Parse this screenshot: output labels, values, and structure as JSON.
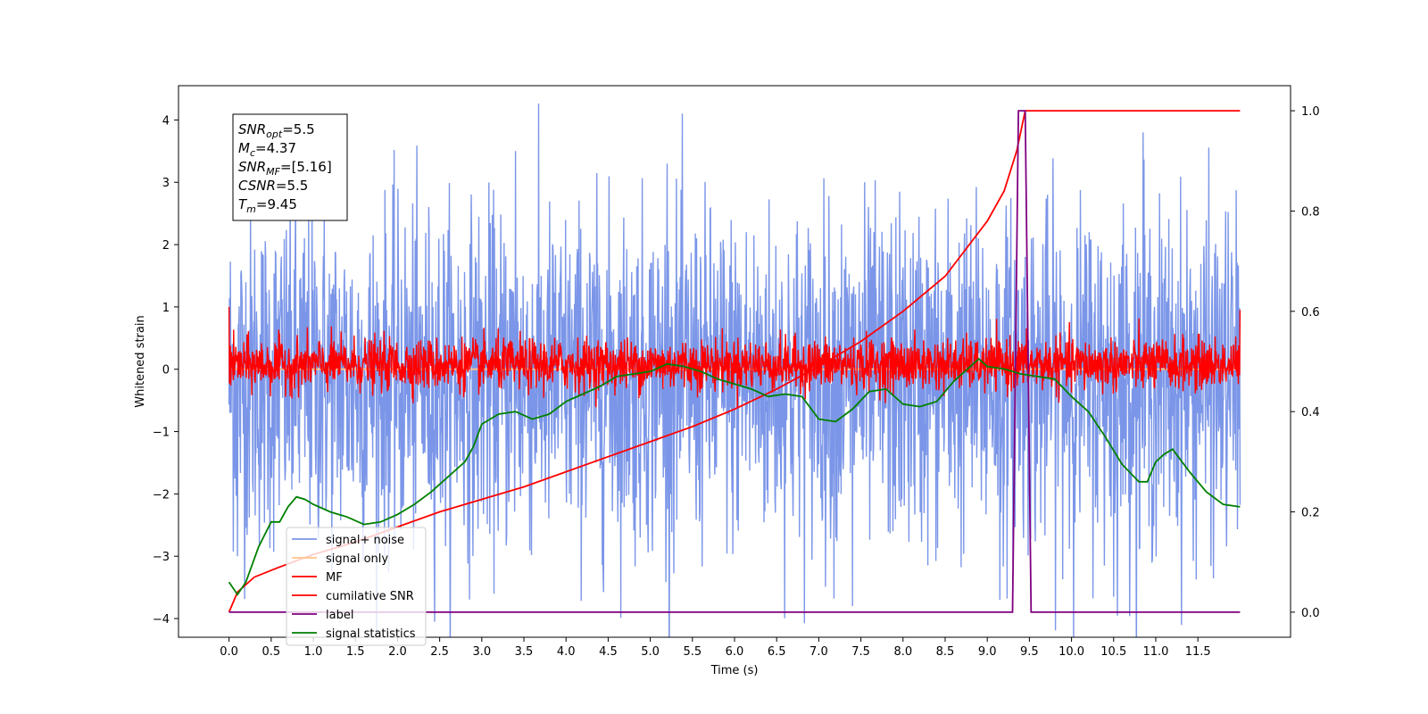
{
  "chart_data": {
    "type": "line",
    "title": "",
    "xlabel": "Time (s)",
    "ylabel": "Whitened strain",
    "ylabel_right": "",
    "xlim": [
      -0.6,
      12.6
    ],
    "ylim": [
      -4.3,
      4.55
    ],
    "ylim_right": [
      -0.05,
      1.05
    ],
    "x_ticks": [
      "0.0",
      "0.5",
      "1.0",
      "1.5",
      "2.0",
      "2.5",
      "3.0",
      "3.5",
      "4.0",
      "4.5",
      "5.0",
      "5.5",
      "6.0",
      "6.5",
      "7.0",
      "7.5",
      "8.0",
      "8.5",
      "9.0",
      "9.5",
      "10.0",
      "10.5",
      "11.0",
      "11.5"
    ],
    "x_tick_values": [
      0,
      0.5,
      1,
      1.5,
      2,
      2.5,
      3,
      3.5,
      4,
      4.5,
      5,
      5.5,
      6,
      6.5,
      7,
      7.5,
      8,
      8.5,
      9,
      9.5,
      10,
      10.5,
      11,
      11.5
    ],
    "y_ticks": [
      "−4",
      "−3",
      "−2",
      "−1",
      "0",
      "1",
      "2",
      "3",
      "4"
    ],
    "y_tick_values": [
      -4,
      -3,
      -2,
      -1,
      0,
      1,
      2,
      3,
      4
    ],
    "y_ticks_right": [
      "0.0",
      "0.2",
      "0.4",
      "0.6",
      "0.8",
      "1.0"
    ],
    "y_tick_values_right": [
      0,
      0.2,
      0.4,
      0.6,
      0.8,
      1.0
    ],
    "grid": false,
    "legend_position": "lower-left",
    "series": [
      {
        "name": "signal+ noise",
        "color": "#7b96e8",
        "axis": "left",
        "style": "noise",
        "x_range": [
          0,
          12.0
        ],
        "approx_lower": -2.6,
        "approx_upper": 2.3,
        "notable_minima": [
          [
            0.1,
            -3.0
          ],
          [
            7.4,
            -3.8
          ],
          [
            9.15,
            -3.7
          ],
          [
            10.5,
            -3.65
          ]
        ],
        "notable_maxima": [
          [
            3.4,
            3.5
          ],
          [
            10.85,
            3.8
          ],
          [
            5.2,
            3.3
          ]
        ]
      },
      {
        "name": "signal only",
        "color": "#ffc48a",
        "axis": "left",
        "style": "line",
        "x": [
          0,
          12.0
        ],
        "y": [
          0,
          0
        ]
      },
      {
        "name": "MF",
        "color": "#ff0000",
        "axis": "left",
        "style": "noise",
        "x_range": [
          0,
          12.0
        ],
        "approx_lower": -0.3,
        "approx_upper": 0.45,
        "endpoints": [
          [
            0,
            1.0
          ],
          [
            12.0,
            0.95
          ]
        ]
      },
      {
        "name": "cumilative SNR",
        "color": "#ff0000",
        "axis": "right",
        "style": "line",
        "x": [
          0,
          0.1,
          0.3,
          0.6,
          1,
          1.5,
          2,
          2.5,
          3,
          3.5,
          4,
          4.5,
          5,
          5.5,
          6,
          6.5,
          7,
          7.5,
          8,
          8.5,
          9,
          9.2,
          9.35,
          9.45,
          10,
          11,
          12.0
        ],
        "y": [
          0,
          0.04,
          0.07,
          0.09,
          0.115,
          0.14,
          0.17,
          0.2,
          0.225,
          0.25,
          0.28,
          0.31,
          0.34,
          0.37,
          0.405,
          0.445,
          0.49,
          0.54,
          0.6,
          0.67,
          0.78,
          0.84,
          0.92,
          1.0,
          1.0,
          1.0,
          1.0
        ]
      },
      {
        "name": "label",
        "color": "#800080",
        "axis": "right",
        "style": "line",
        "x": [
          0,
          9.3,
          9.37,
          9.45,
          9.52,
          12.0
        ],
        "y": [
          0,
          0,
          1.0,
          1.0,
          0,
          0
        ]
      },
      {
        "name": "signal statistics",
        "color": "#008000",
        "axis": "right",
        "style": "line",
        "x": [
          0,
          0.1,
          0.2,
          0.35,
          0.5,
          0.6,
          0.7,
          0.8,
          0.9,
          1.0,
          1.2,
          1.4,
          1.6,
          1.8,
          2.0,
          2.2,
          2.4,
          2.6,
          2.8,
          2.9,
          3.0,
          3.2,
          3.4,
          3.6,
          3.8,
          4.0,
          4.2,
          4.4,
          4.6,
          4.8,
          5.0,
          5.2,
          5.4,
          5.6,
          5.8,
          6.0,
          6.2,
          6.4,
          6.6,
          6.8,
          7.0,
          7.2,
          7.4,
          7.6,
          7.8,
          8.0,
          8.2,
          8.4,
          8.6,
          8.8,
          8.9,
          9.0,
          9.2,
          9.4,
          9.6,
          9.8,
          10.0,
          10.2,
          10.4,
          10.6,
          10.8,
          10.9,
          11.0,
          11.1,
          11.2,
          11.4,
          11.6,
          11.8,
          12.0
        ],
        "y": [
          0.06,
          0.035,
          0.06,
          0.13,
          0.18,
          0.18,
          0.21,
          0.23,
          0.225,
          0.215,
          0.2,
          0.19,
          0.175,
          0.18,
          0.195,
          0.215,
          0.24,
          0.27,
          0.3,
          0.33,
          0.375,
          0.395,
          0.4,
          0.385,
          0.395,
          0.42,
          0.435,
          0.45,
          0.47,
          0.475,
          0.48,
          0.495,
          0.49,
          0.48,
          0.465,
          0.455,
          0.445,
          0.43,
          0.435,
          0.43,
          0.385,
          0.38,
          0.405,
          0.44,
          0.445,
          0.415,
          0.41,
          0.42,
          0.46,
          0.49,
          0.505,
          0.49,
          0.485,
          0.475,
          0.47,
          0.465,
          0.43,
          0.4,
          0.35,
          0.295,
          0.26,
          0.26,
          0.3,
          0.315,
          0.325,
          0.28,
          0.24,
          0.215,
          0.21
        ]
      }
    ],
    "annotation": [
      {
        "base": "SNR",
        "sub": "opt",
        "value": "=5.5"
      },
      {
        "base": "M",
        "sub": "c",
        "value": "=4.37"
      },
      {
        "base": "SNR",
        "sub": "MF",
        "value": "=[5.16]"
      },
      {
        "base": "CSNR",
        "sub": "",
        "value": "=5.5"
      },
      {
        "base": "T",
        "sub": "m",
        "value": "=9.45"
      }
    ]
  }
}
